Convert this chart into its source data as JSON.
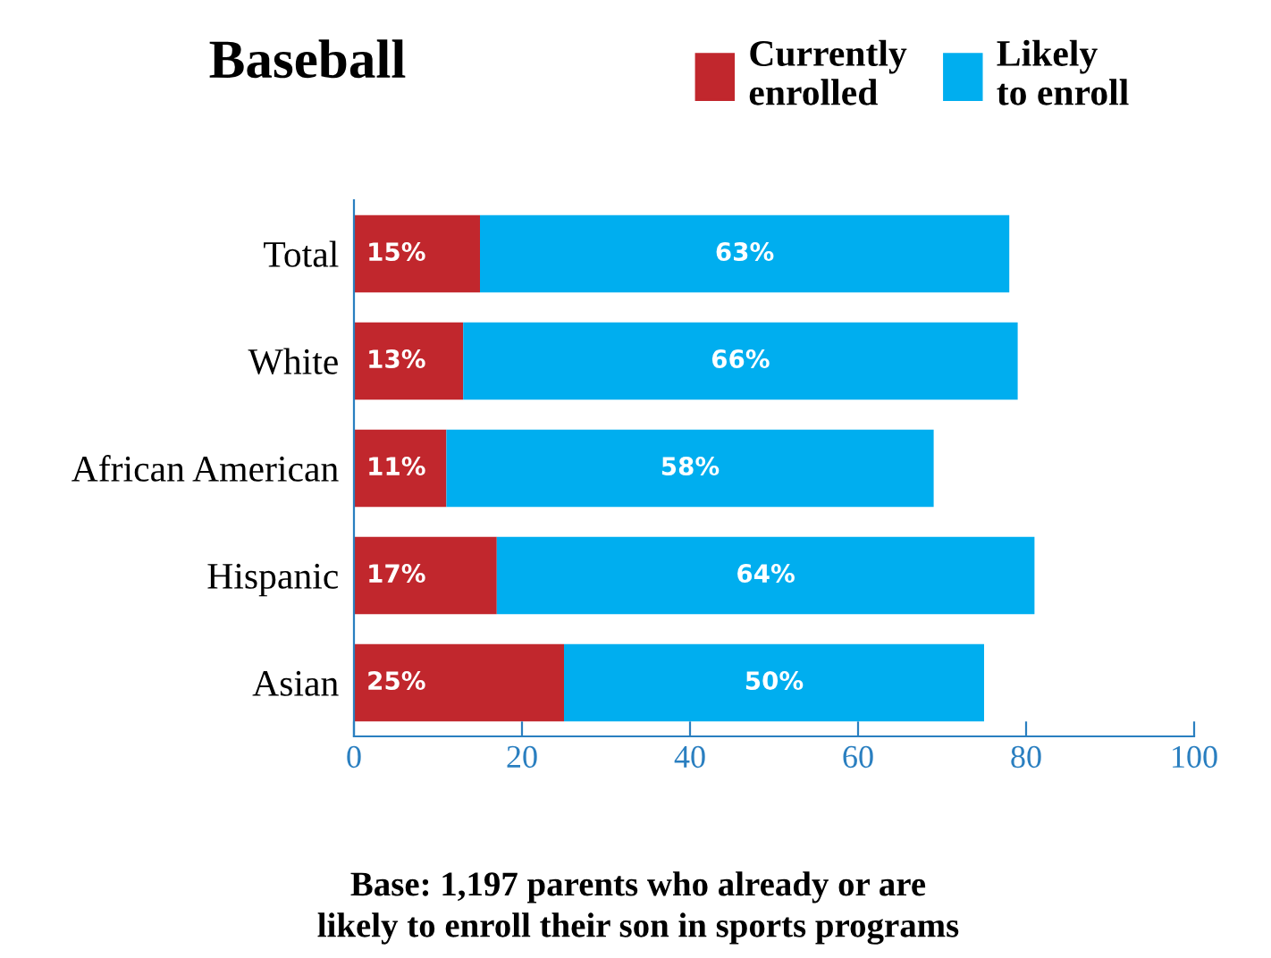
{
  "chart_data": {
    "type": "bar",
    "orientation": "horizontal",
    "stacked": true,
    "title": "Baseball",
    "categories": [
      "Total",
      "White",
      "African American",
      "Hispanic",
      "Asian"
    ],
    "series": [
      {
        "name": "Currently\nenrolled",
        "color": "#c1272d",
        "values": [
          15,
          13,
          11,
          17,
          25
        ],
        "value_labels": [
          "15%",
          "13%",
          "11%",
          "17%",
          "25%"
        ]
      },
      {
        "name": "Likely\nto enroll",
        "color": "#00aeef",
        "values": [
          63,
          66,
          58,
          64,
          50
        ],
        "value_labels": [
          "63%",
          "66%",
          "58%",
          "64%",
          "50%"
        ]
      }
    ],
    "xlim": [
      0,
      100
    ],
    "xticks": [
      0,
      20,
      40,
      60,
      80,
      100
    ],
    "grid": false,
    "legend": "top right",
    "annotations": [
      "Base: 1,197 parents who already or are\nlikely to enroll their son in sports programs"
    ]
  }
}
